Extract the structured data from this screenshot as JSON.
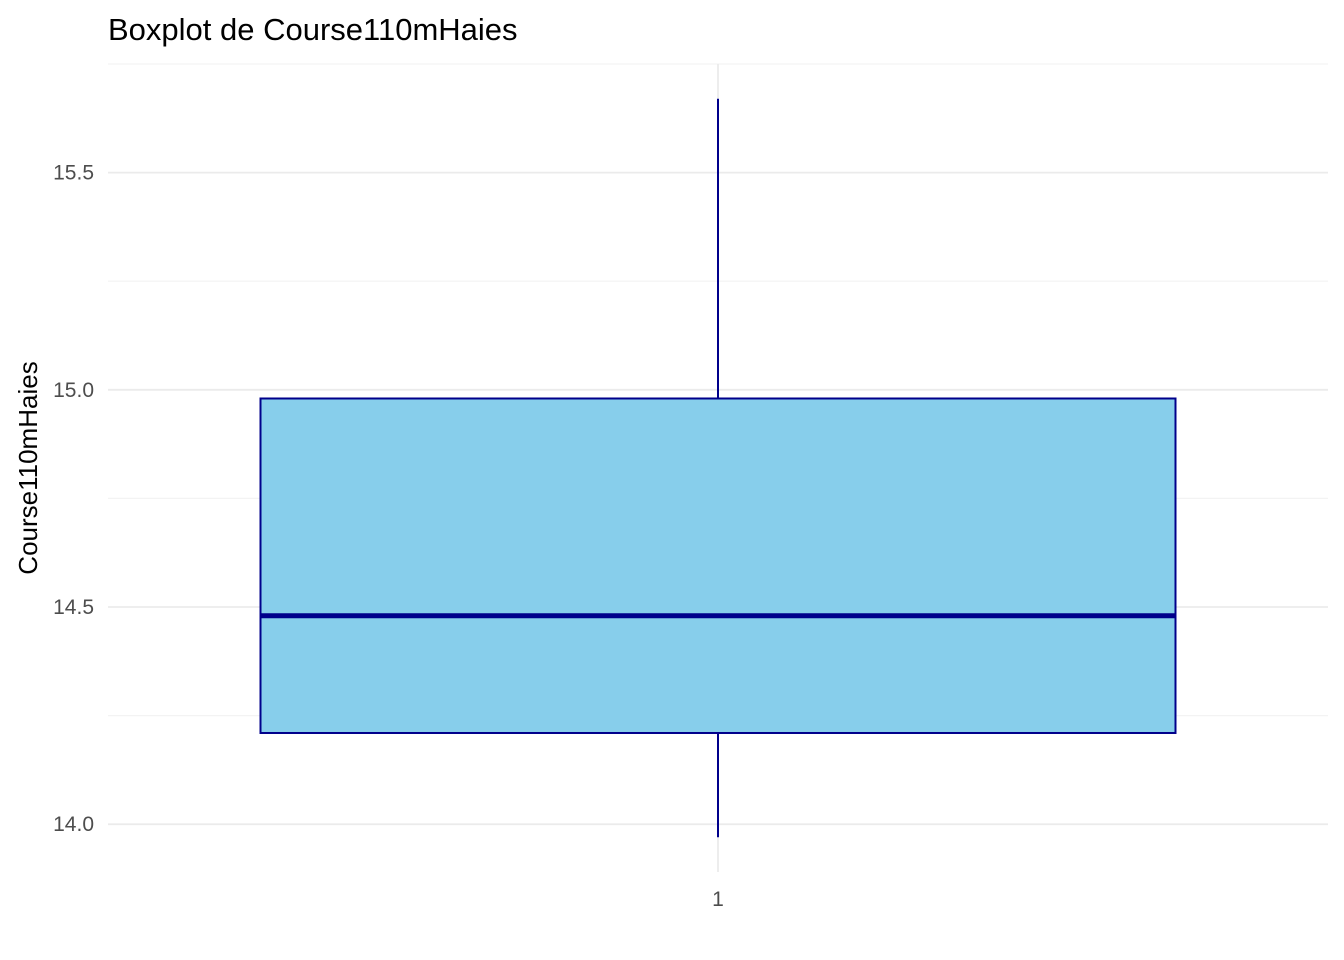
{
  "chart_data": {
    "type": "boxplot",
    "title": "Boxplot de Course110mHaies",
    "xlabel": "",
    "ylabel": "Course110mHaies",
    "categories": [
      "1"
    ],
    "boxes": [
      {
        "category": "1",
        "whisker_low": 13.97,
        "q1": 14.21,
        "median": 14.48,
        "q3": 14.98,
        "whisker_high": 15.67
      }
    ],
    "ylim": [
      13.89,
      15.75
    ],
    "y_ticks": [
      14.0,
      14.5,
      15.0,
      15.5
    ],
    "y_tick_labels": [
      "14.0",
      "14.5",
      "15.0",
      "15.5"
    ],
    "y_minor_ticks": [
      14.25,
      14.75,
      15.25,
      15.75
    ],
    "grid": true,
    "legend": "none",
    "colors": {
      "box_fill": "#87CEEB",
      "box_outline": "#00008B",
      "median": "#00008B",
      "whisker": "#00008B",
      "grid_major": "#ebebeb",
      "grid_minor": "#f3f3f3"
    }
  }
}
